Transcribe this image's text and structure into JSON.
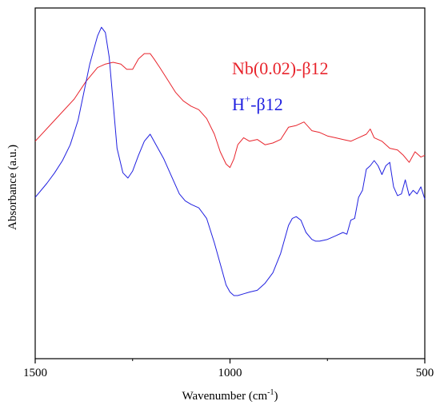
{
  "chart_data": {
    "type": "line",
    "xlabel": "Wavenumber (cm",
    "xlabel_sup": "-1",
    "xlabel_end": ")",
    "ylabel": "Absorbance (a.u.)",
    "xlim": [
      1500,
      500
    ],
    "x_reversed": true,
    "xticks": [
      1500,
      1000,
      500
    ],
    "xtick_labels": [
      "1500",
      "1000",
      "500"
    ],
    "ylim": [
      0,
      1
    ],
    "yticks": [],
    "grid": false,
    "legend_position": "top-right",
    "series": [
      {
        "name": "Nb(0.02)-β12",
        "legend_label": {
          "base": "Nb(0.02)-β12",
          "sup": "",
          "suffix": ""
        },
        "color": "#e8242c",
        "x": [
          1500,
          1450,
          1400,
          1370,
          1340,
          1320,
          1300,
          1280,
          1265,
          1250,
          1235,
          1220,
          1205,
          1195,
          1180,
          1160,
          1140,
          1120,
          1100,
          1080,
          1060,
          1040,
          1025,
          1010,
          1000,
          990,
          980,
          965,
          950,
          930,
          910,
          890,
          870,
          850,
          830,
          810,
          790,
          770,
          750,
          730,
          710,
          690,
          670,
          650,
          640,
          630,
          610,
          590,
          570,
          555,
          540,
          525,
          510,
          500
        ],
        "y": [
          0.62,
          0.68,
          0.74,
          0.79,
          0.83,
          0.84,
          0.845,
          0.84,
          0.825,
          0.825,
          0.855,
          0.87,
          0.87,
          0.855,
          0.83,
          0.795,
          0.76,
          0.735,
          0.72,
          0.71,
          0.685,
          0.64,
          0.59,
          0.555,
          0.545,
          0.57,
          0.61,
          0.63,
          0.62,
          0.625,
          0.61,
          0.615,
          0.625,
          0.66,
          0.665,
          0.675,
          0.65,
          0.645,
          0.635,
          0.63,
          0.625,
          0.62,
          0.63,
          0.64,
          0.655,
          0.63,
          0.62,
          0.6,
          0.595,
          0.58,
          0.56,
          0.59,
          0.575,
          0.58
        ]
      },
      {
        "name": "H+-β12",
        "legend_label": {
          "base": "H",
          "sup": "+",
          "suffix": "-β12"
        },
        "color": "#2020e0",
        "x": [
          1500,
          1470,
          1450,
          1430,
          1410,
          1390,
          1375,
          1360,
          1350,
          1340,
          1330,
          1320,
          1310,
          1300,
          1290,
          1275,
          1262,
          1250,
          1235,
          1220,
          1205,
          1190,
          1170,
          1150,
          1130,
          1115,
          1100,
          1080,
          1060,
          1040,
          1020,
          1010,
          1000,
          990,
          980,
          965,
          950,
          930,
          910,
          890,
          870,
          850,
          840,
          830,
          818,
          805,
          790,
          780,
          770,
          750,
          730,
          710,
          700,
          690,
          680,
          670,
          660,
          650,
          640,
          630,
          620,
          610,
          600,
          590,
          580,
          570,
          560,
          550,
          540,
          530,
          520,
          510,
          500
        ],
        "y": [
          0.46,
          0.5,
          0.53,
          0.565,
          0.61,
          0.68,
          0.76,
          0.84,
          0.88,
          0.92,
          0.945,
          0.93,
          0.86,
          0.73,
          0.6,
          0.53,
          0.515,
          0.535,
          0.58,
          0.62,
          0.64,
          0.61,
          0.57,
          0.52,
          0.47,
          0.45,
          0.44,
          0.43,
          0.4,
          0.33,
          0.25,
          0.21,
          0.19,
          0.18,
          0.18,
          0.185,
          0.19,
          0.195,
          0.215,
          0.245,
          0.3,
          0.38,
          0.4,
          0.405,
          0.395,
          0.36,
          0.34,
          0.335,
          0.335,
          0.34,
          0.35,
          0.36,
          0.355,
          0.395,
          0.4,
          0.46,
          0.48,
          0.54,
          0.55,
          0.565,
          0.55,
          0.525,
          0.55,
          0.56,
          0.49,
          0.465,
          0.47,
          0.51,
          0.465,
          0.48,
          0.47,
          0.49,
          0.455
        ]
      }
    ]
  }
}
